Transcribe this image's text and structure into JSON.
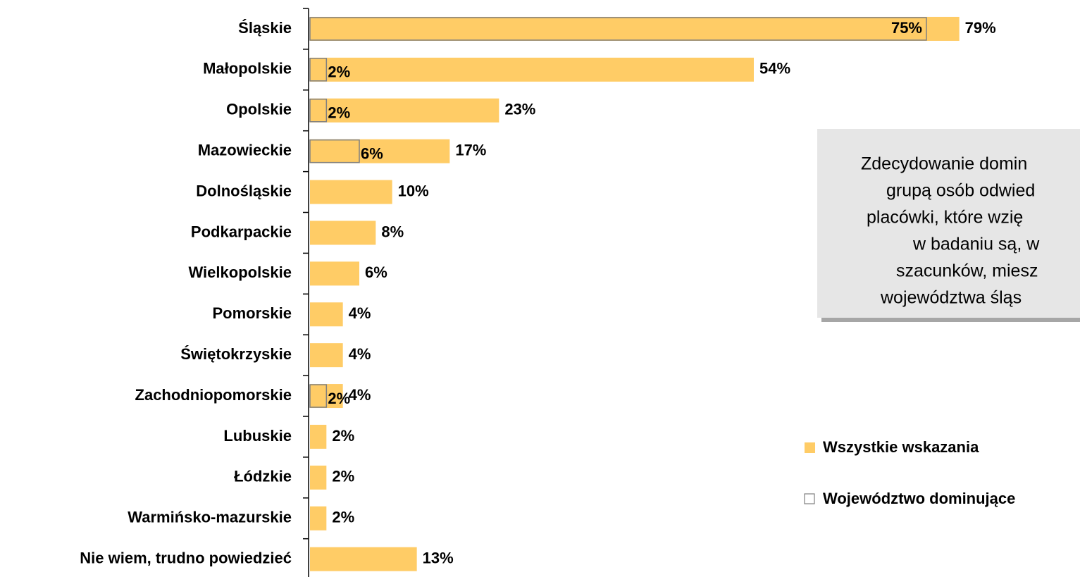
{
  "chart_data": {
    "type": "barh",
    "categories": [
      "Śląskie",
      "Małopolskie",
      "Opolskie",
      "Mazowieckie",
      "Dolnośląskie",
      "Podkarpackie",
      "Wielkopolskie",
      "Pomorskie",
      "Świętokrzyskie",
      "Zachodniopomorskie",
      "Lubuskie",
      "Łódzkie",
      "Warmińsko-mazurskie",
      "Nie wiem, trudno powiedzieć"
    ],
    "series": [
      {
        "name": "Wszystkie wskazania",
        "color": "#ffcc66",
        "values": [
          79,
          54,
          23,
          17,
          10,
          8,
          6,
          4,
          4,
          4,
          2,
          2,
          2,
          13
        ],
        "value_labels": [
          "79%",
          "54%",
          "23%",
          "17%",
          "10%",
          "8%",
          "6%",
          "4%",
          "4%",
          "4%",
          "2%",
          "2%",
          "2%",
          "13%"
        ]
      },
      {
        "name": "Województwo dominujące",
        "color": "#808080",
        "values": [
          75,
          2,
          2,
          6,
          null,
          null,
          null,
          null,
          null,
          2,
          null,
          null,
          null,
          null
        ],
        "value_labels": [
          "75%",
          "2%",
          "2%",
          "6%",
          null,
          null,
          null,
          null,
          null,
          "2%",
          null,
          null,
          null,
          null
        ]
      }
    ],
    "xlim": [
      0,
      90
    ],
    "annotation": [
      "Zdecydowanie domin",
      "grupą osób odwied",
      "placówki, które wzię",
      "w badaniu są, w",
      "szacunków, miesz",
      "województwa śląs"
    ]
  }
}
